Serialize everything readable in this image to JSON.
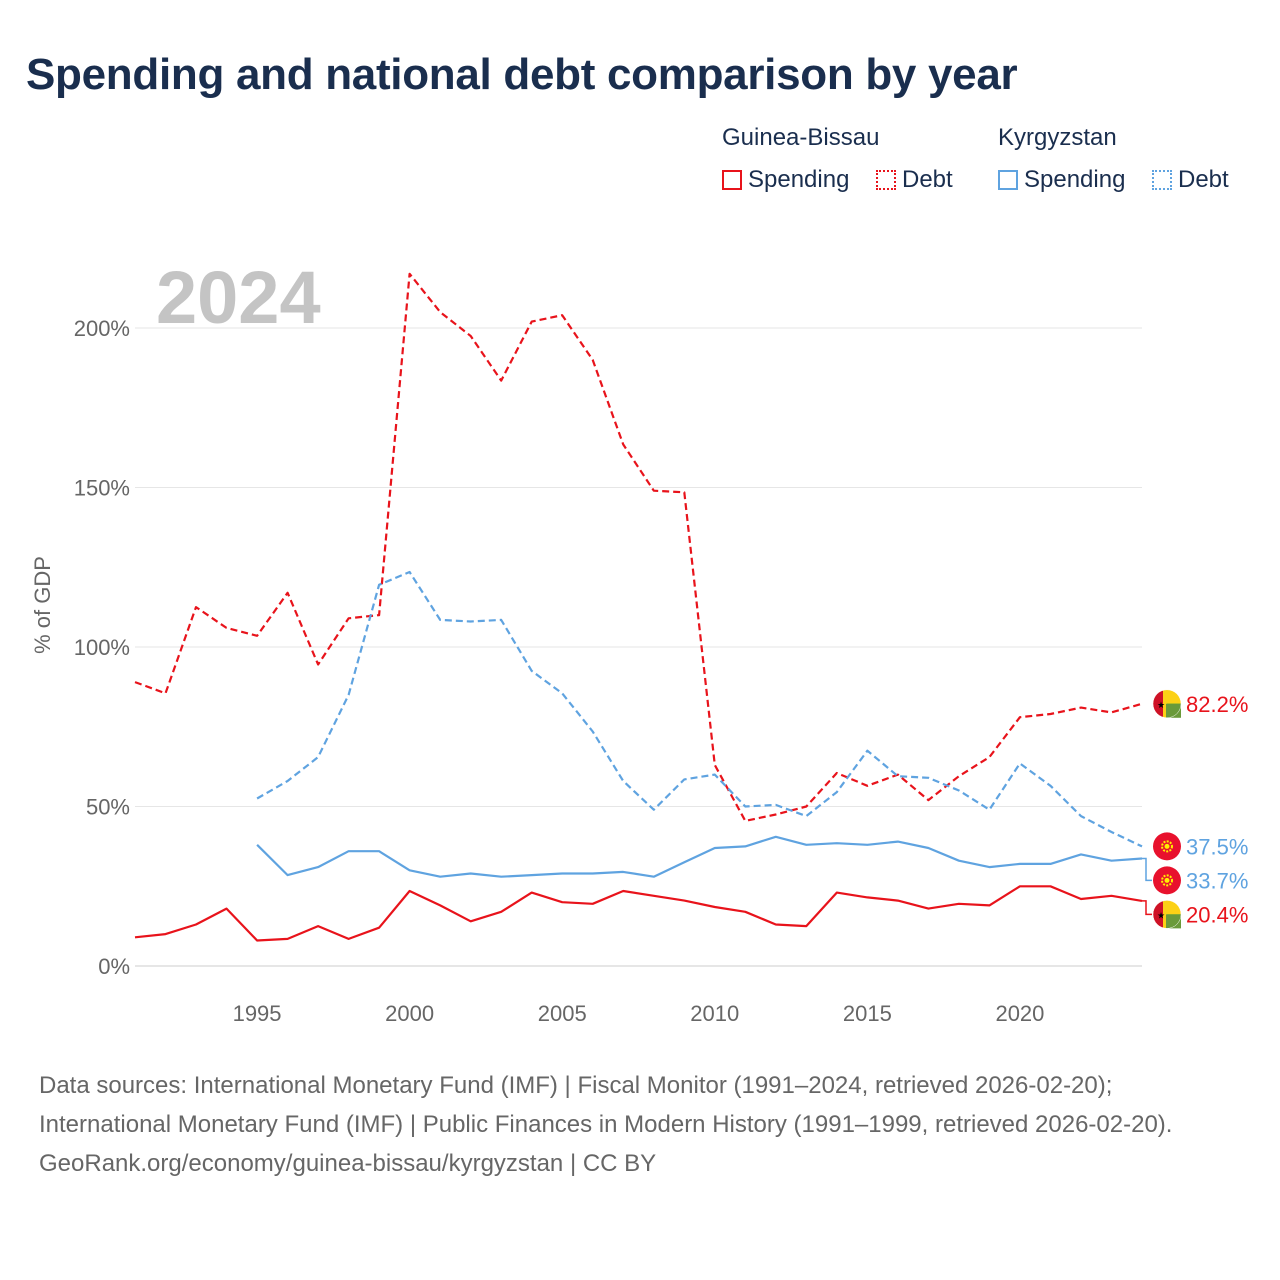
{
  "title": "Spending and national debt comparison by year",
  "legend": {
    "groups": [
      {
        "name": "Guinea-Bissau",
        "color": "#e8131b",
        "spending_label": "Spending",
        "debt_label": "Debt"
      },
      {
        "name": "Kyrgyzstan",
        "color": "#5fa3e0",
        "spending_label": "Spending",
        "debt_label": "Debt"
      }
    ]
  },
  "year_watermark": "2024",
  "chart_data": {
    "type": "line",
    "title": "Spending and national debt comparison by year",
    "xlabel": "",
    "ylabel": "% of GDP",
    "xlim": [
      1991,
      2024
    ],
    "ylim": [
      0,
      220
    ],
    "x_ticks": [
      1995,
      2000,
      2005,
      2010,
      2015,
      2020
    ],
    "y_ticks": [
      0,
      50,
      100,
      150,
      200
    ],
    "y_tick_labels": [
      "0%",
      "50%",
      "100%",
      "150%",
      "200%"
    ],
    "grid": true,
    "series": [
      {
        "name": "Guinea-Bissau Debt",
        "country": "Guinea-Bissau",
        "kind": "Debt",
        "color": "#e8131b",
        "dashed": true,
        "x": [
          1991,
          1992,
          1993,
          1994,
          1995,
          1996,
          1997,
          1998,
          1999,
          2000,
          2001,
          2002,
          2003,
          2004,
          2005,
          2006,
          2007,
          2008,
          2009,
          2010,
          2011,
          2012,
          2013,
          2014,
          2015,
          2016,
          2017,
          2018,
          2019,
          2020,
          2021,
          2022,
          2023,
          2024
        ],
        "values": [
          89,
          85.5,
          112.5,
          106,
          103.5,
          117,
          94.5,
          109,
          110,
          217,
          205,
          197.5,
          183.5,
          202,
          204,
          190,
          163.5,
          149,
          148.5,
          63,
          45.5,
          47.5,
          50,
          60.5,
          56.5,
          60,
          52,
          59.5,
          65.5,
          78,
          79,
          81,
          79.5,
          82.2
        ],
        "end_label": "82.2%"
      },
      {
        "name": "Kyrgyzstan Debt",
        "country": "Kyrgyzstan",
        "kind": "Debt",
        "color": "#5fa3e0",
        "dashed": true,
        "x": [
          1995,
          1996,
          1997,
          1998,
          1999,
          2000,
          2001,
          2002,
          2003,
          2004,
          2005,
          2006,
          2007,
          2008,
          2009,
          2010,
          2011,
          2012,
          2013,
          2014,
          2015,
          2016,
          2017,
          2018,
          2019,
          2020,
          2021,
          2022,
          2023,
          2024
        ],
        "values": [
          52.5,
          58,
          65.5,
          85,
          119.5,
          123.5,
          108.5,
          108,
          108.5,
          92.5,
          85.5,
          73.5,
          58,
          49,
          58.5,
          60,
          50,
          50.5,
          47,
          54.5,
          67.5,
          59.5,
          59,
          55,
          49,
          63.5,
          56.5,
          47,
          42,
          37.5
        ],
        "end_label": "37.5%"
      },
      {
        "name": "Kyrgyzstan Spending",
        "country": "Kyrgyzstan",
        "kind": "Spending",
        "color": "#5fa3e0",
        "dashed": false,
        "x": [
          1995,
          1996,
          1997,
          1998,
          1999,
          2000,
          2001,
          2002,
          2003,
          2004,
          2005,
          2006,
          2007,
          2008,
          2009,
          2010,
          2011,
          2012,
          2013,
          2014,
          2015,
          2016,
          2017,
          2018,
          2019,
          2020,
          2021,
          2022,
          2023,
          2024
        ],
        "values": [
          38,
          28.5,
          31,
          36,
          36,
          30,
          28,
          29,
          28,
          28.5,
          29,
          29,
          29.5,
          28,
          32.5,
          37,
          37.5,
          40.5,
          38,
          38.5,
          38,
          39,
          37,
          33,
          31,
          32,
          32,
          35,
          33,
          33.7
        ],
        "end_label": "33.7%"
      },
      {
        "name": "Guinea-Bissau Spending",
        "country": "Guinea-Bissau",
        "kind": "Spending",
        "color": "#e8131b",
        "dashed": false,
        "x": [
          1991,
          1992,
          1993,
          1994,
          1995,
          1996,
          1997,
          1998,
          1999,
          2000,
          2001,
          2002,
          2003,
          2004,
          2005,
          2006,
          2007,
          2008,
          2009,
          2010,
          2011,
          2012,
          2013,
          2014,
          2015,
          2016,
          2017,
          2018,
          2019,
          2020,
          2021,
          2022,
          2023,
          2024
        ],
        "values": [
          9,
          10,
          13,
          18,
          8,
          8.5,
          12.5,
          8.5,
          12,
          23.5,
          19,
          14,
          17,
          23,
          20,
          19.5,
          23.5,
          22,
          20.5,
          18.5,
          17,
          13,
          12.5,
          23,
          21.5,
          20.5,
          18,
          19.5,
          19,
          25,
          25,
          21,
          22,
          20.4
        ],
        "end_label": "20.4%"
      }
    ]
  },
  "footer": {
    "sources": "Data sources: International Monetary Fund (IMF) | Fiscal Monitor (1991–2024, retrieved 2026-02-20); International Monetary Fund (IMF) | Public Finances in Modern History (1991–1999, retrieved 2026-02-20).",
    "attribution": "GeoRank.org/economy/guinea-bissau/kyrgyzstan | CC BY"
  }
}
